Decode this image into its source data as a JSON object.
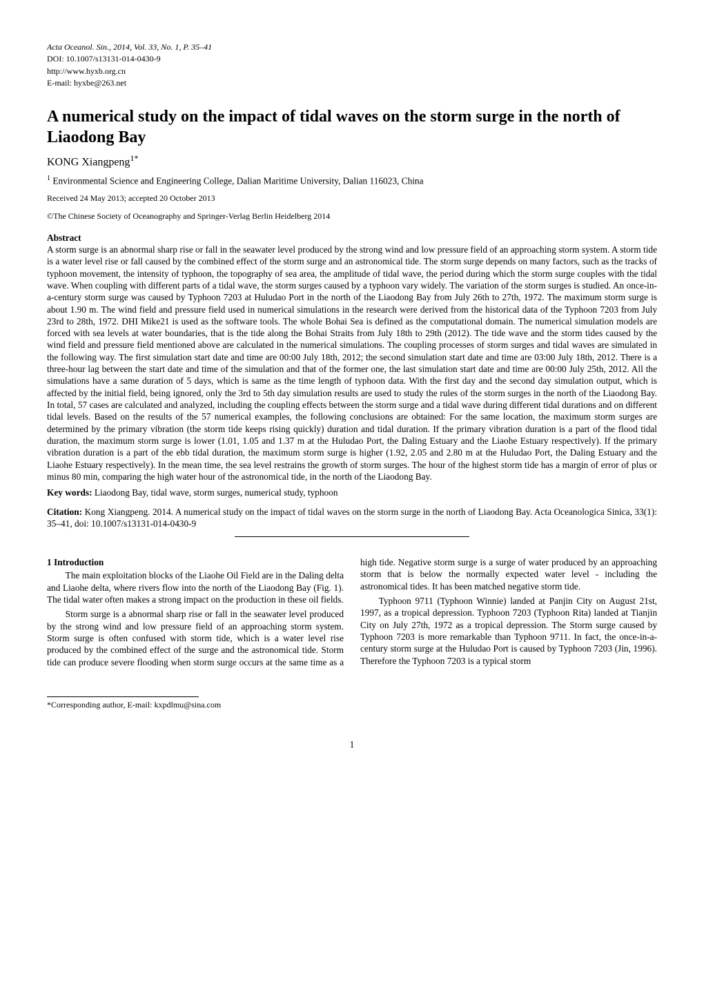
{
  "meta": {
    "journal_line": "Acta Oceanol. Sin., 2014, Vol. 33, No. 1, P. 35–41",
    "doi_line": "DOI: 10.1007/s13131-014-0430-9",
    "url_line": "http://www.hyxb.org.cn",
    "email_line": "E-mail: hyxbe@263.net"
  },
  "title": "A numerical study on the impact of tidal waves on the storm surge in the north of Liaodong Bay",
  "author": "KONG Xiangpeng",
  "author_superscript": "1*",
  "affiliation_sup": "1",
  "affiliation": " Environmental Science and Engineering College, Dalian Maritime University, Dalian 116023, China",
  "received": "Received 24 May 2013; accepted 20 October 2013",
  "copyright": "©The Chinese Society of Oceanography and Springer-Verlag Berlin Heidelberg 2014",
  "abstract_label": "Abstract",
  "abstract": "A storm surge is an abnormal sharp rise or fall in the seawater level produced by the strong wind and low pressure field of an approaching storm system. A storm tide is a water level rise or fall caused by the combined effect of the storm surge and an astronomical tide. The storm surge depends on many factors, such as the tracks of typhoon movement, the intensity of typhoon, the topography of sea area, the amplitude of tidal wave, the period during which the storm surge couples with the tidal wave. When coupling with different parts of a tidal wave, the storm surges caused by a typhoon vary widely. The variation of the storm surges is studied. An once-in-a-century storm surge was caused by Typhoon 7203 at Huludao Port in the north of the Liaodong Bay from July 26th to 27th, 1972. The maximum storm surge is about 1.90 m. The wind field and pressure field used in numerical simulations in the research were derived from the historical data of the Typhoon 7203 from July 23rd to 28th, 1972. DHI Mike21 is used as the software tools. The whole Bohai Sea is defined as the computational domain. The numerical simulation models are forced with sea levels at water boundaries, that is the tide along the Bohai Straits from July 18th to 29th (2012). The tide wave and the storm tides caused by the wind field and pressure field mentioned above are calculated in the numerical simulations. The coupling processes of storm surges and tidal waves are simulated in the following way. The first simulation start date and time are 00:00 July 18th, 2012; the second simulation start date and time are 03:00 July 18th, 2012. There is a three-hour lag between the start date and time of the simulation and that of the former one, the last simulation start date and time are 00:00 July 25th, 2012. All the simulations have a same duration of 5 days, which is same as the time length of typhoon data. With the first day and the second day simulation output, which is affected by the initial field, being ignored, only the 3rd to 5th day simulation results are used to study the rules of the storm surges in the north of the Liaodong Bay. In total, 57 cases are calculated and analyzed, including the coupling effects between the storm surge and a tidal wave during different tidal durations and on different tidal levels. Based on the results of the 57 numerical examples, the following conclusions are obtained: For the same location, the maximum storm surges are determined by the primary vibration (the storm tide keeps rising quickly) duration and tidal duration. If the primary vibration duration is a part of the flood tidal duration, the maximum storm surge is lower (1.01, 1.05 and 1.37 m at the Huludao Port, the Daling Estuary and the Liaohe Estuary respectively). If the primary vibration duration is a part of the ebb tidal duration, the maximum storm surge is higher (1.92, 2.05 and 2.80 m at the Huludao Port, the Daling Estuary and the Liaohe Estuary respectively). In the mean time, the sea level restrains the growth of storm surges. The hour of the highest storm tide has a margin of error of plus or minus 80 min, comparing the high water hour of the astronomical tide, in the north of the Liaodong Bay.",
  "keywords_label": "Key words:",
  "keywords": " Liaodong Bay, tidal wave, storm surges, numerical study, typhoon",
  "citation_label": "Citation:",
  "citation": " Kong Xiangpeng. 2014. A numerical study on the impact of tidal waves on the storm surge in the north of Liaodong Bay. Acta Oceanologica Sinica, 33(1): 35–41, doi: 10.1007/s13131-014-0430-9",
  "section1_heading": "1 Introduction",
  "intro_p1": "The main exploitation blocks of the Liaohe Oil Field are in the Daling delta and Liaohe delta, where rivers flow into the north of the Liaodong Bay (Fig. 1). The tidal water often makes a strong impact on the production in these oil fields.",
  "intro_p2": "Storm surge is a abnormal sharp rise or fall in the seawater level produced by the strong wind and low pressure field of an approaching storm system. Storm surge is often confused with storm tide, which is a water level rise produced by the combined effect of the surge and the astronomical tide. Storm tide can produce severe flooding when storm surge occurs at the same time as a high tide. Negative storm surge is a surge of water produced by an approaching storm that is below the normally expected water level - including the astronomical tides. It has been matched negative storm tide.",
  "intro_p3": "Typhoon 9711 (Typhoon Winnie) landed at Panjin City on August 21st, 1997, as a tropical depression. Typhoon 7203 (Typhoon Rita) landed at Tianjin City on July 27th, 1972 as a tropical depression. The Storm surge caused by Typhoon 7203 is more remarkable than Typhoon 9711. In fact, the once-in-a-century storm surge at the Huludao Port is caused by Typhoon 7203 (Jin, 1996). Therefore the Typhoon 7203 is a typical storm",
  "footnote": "*Corresponding author, E-mail: kxpdlmu@sina.com",
  "page_number": "1"
}
